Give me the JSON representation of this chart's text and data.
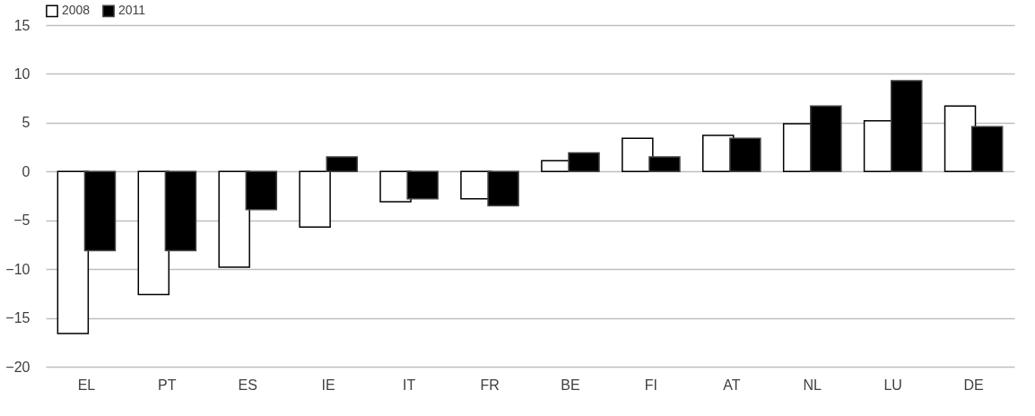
{
  "chart_data": {
    "type": "bar",
    "categories": [
      "EL",
      "PT",
      "ES",
      "IE",
      "IT",
      "FR",
      "BE",
      "FI",
      "AT",
      "NL",
      "LU",
      "DE"
    ],
    "series": [
      {
        "name": "2008",
        "color": "#ffffff",
        "values": [
          -16.6,
          -12.6,
          -9.8,
          -5.7,
          -3.1,
          -2.8,
          1.1,
          3.4,
          3.7,
          4.9,
          5.2,
          6.7
        ]
      },
      {
        "name": "2011",
        "color": "#000000",
        "values": [
          -8.1,
          -8.1,
          -3.9,
          1.5,
          -2.8,
          -3.5,
          1.9,
          1.5,
          3.4,
          6.7,
          9.3,
          4.6
        ]
      }
    ],
    "ylim": [
      -20,
      15
    ],
    "yticks": [
      -20,
      -15,
      -10,
      -5,
      0,
      5,
      10,
      15
    ],
    "grid": "y",
    "legend": "top"
  }
}
